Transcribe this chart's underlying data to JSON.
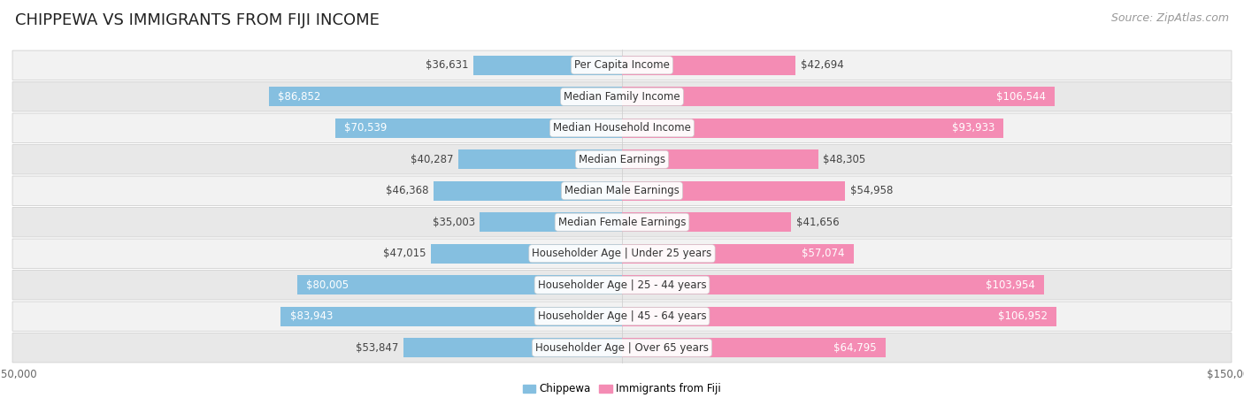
{
  "title": "CHIPPEWA VS IMMIGRANTS FROM FIJI INCOME",
  "source": "Source: ZipAtlas.com",
  "categories": [
    "Per Capita Income",
    "Median Family Income",
    "Median Household Income",
    "Median Earnings",
    "Median Male Earnings",
    "Median Female Earnings",
    "Householder Age | Under 25 years",
    "Householder Age | 25 - 44 years",
    "Householder Age | 45 - 64 years",
    "Householder Age | Over 65 years"
  ],
  "chippewa_values": [
    36631,
    86852,
    70539,
    40287,
    46368,
    35003,
    47015,
    80005,
    83943,
    53847
  ],
  "fiji_values": [
    42694,
    106544,
    93933,
    48305,
    54958,
    41656,
    57074,
    103954,
    106952,
    64795
  ],
  "chippewa_color": "#85bfe0",
  "fiji_color": "#f48cb4",
  "label_chippewa": "Chippewa",
  "label_fiji": "Immigrants from Fiji",
  "x_max": 150000,
  "background_color": "#ffffff",
  "row_bg_even": "#f2f2f2",
  "row_bg_odd": "#e8e8e8",
  "row_border_color": "#d0d0d0",
  "title_fontsize": 13,
  "source_fontsize": 9,
  "label_fontsize": 8.5,
  "value_fontsize": 8.5,
  "inside_threshold": 0.38
}
